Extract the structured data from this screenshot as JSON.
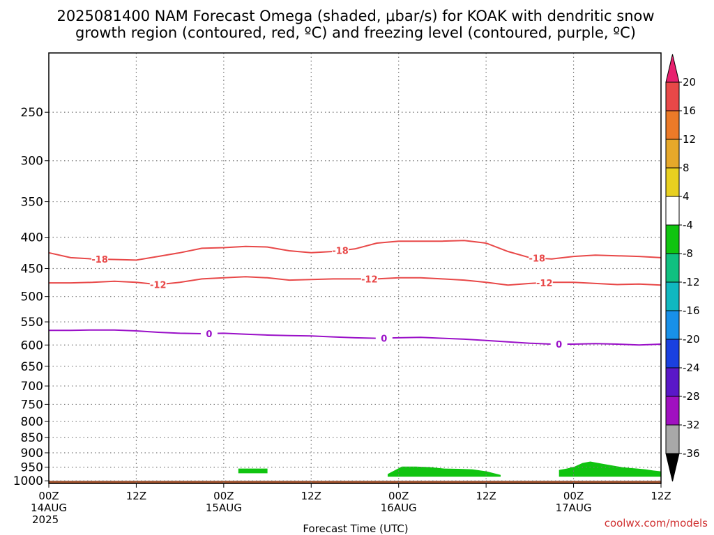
{
  "chart_data": {
    "type": "area",
    "title_line1": "2025081400 NAM Forecast Omega (shaded, μbar/s) for KOAK with dendritic snow",
    "title_line2": "growth region (contoured, red, ºC) and freezing level (contoured, purple, ºC)",
    "xlabel": "Forecast Time (UTC)",
    "credit": "coolwx.com/models",
    "x_range_hours": [
      0,
      84
    ],
    "x_ticks": [
      {
        "hour": 0,
        "l1": "00Z",
        "l2": "14AUG",
        "l3": "2025"
      },
      {
        "hour": 12,
        "l1": "12Z",
        "l2": "",
        "l3": ""
      },
      {
        "hour": 24,
        "l1": "00Z",
        "l2": "15AUG",
        "l3": ""
      },
      {
        "hour": 36,
        "l1": "12Z",
        "l2": "",
        "l3": ""
      },
      {
        "hour": 48,
        "l1": "00Z",
        "l2": "16AUG",
        "l3": ""
      },
      {
        "hour": 60,
        "l1": "12Z",
        "l2": "",
        "l3": ""
      },
      {
        "hour": 72,
        "l1": "00Z",
        "l2": "17AUG",
        "l3": ""
      },
      {
        "hour": 84,
        "l1": "12Z",
        "l2": "",
        "l3": ""
      }
    ],
    "y_axis": "pressure (hPa), log scale, inverted",
    "y_range": [
      1010,
      200
    ],
    "y_ticks": [
      250,
      300,
      350,
      400,
      450,
      500,
      550,
      600,
      650,
      700,
      750,
      800,
      850,
      900,
      950,
      1000
    ],
    "grid": true,
    "colorbar": {
      "labels": [
        "20",
        "16",
        "12",
        "8",
        "4",
        "-4",
        "-8",
        "-12",
        "-16",
        "-20",
        "-24",
        "-28",
        "-32",
        "-36"
      ],
      "colors": [
        "#e8206e",
        "#e84848",
        "#ec7a28",
        "#e6a82a",
        "#e8d020",
        "#ffffff",
        "#10c410",
        "#10c080",
        "#10b8c0",
        "#1890e8",
        "#1a40e0",
        "#5a18c8",
        "#a010c0",
        "#a8a8a8",
        "#000000"
      ]
    },
    "contours": [
      {
        "name": "-18",
        "color": "#e84848",
        "label_x": [
          7,
          40,
          67
        ],
        "points": [
          [
            0,
            424
          ],
          [
            3,
            432
          ],
          [
            6,
            434
          ],
          [
            9,
            435
          ],
          [
            12,
            436
          ],
          [
            15,
            430
          ],
          [
            18,
            424
          ],
          [
            21,
            417
          ],
          [
            24,
            416
          ],
          [
            27,
            414
          ],
          [
            30,
            415
          ],
          [
            33,
            421
          ],
          [
            36,
            424
          ],
          [
            39,
            422
          ],
          [
            42,
            418
          ],
          [
            45,
            409
          ],
          [
            48,
            406
          ],
          [
            51,
            406
          ],
          [
            54,
            406
          ],
          [
            57,
            405
          ],
          [
            60,
            409
          ],
          [
            63,
            422
          ],
          [
            66,
            432
          ],
          [
            69,
            434
          ],
          [
            72,
            430
          ],
          [
            75,
            428
          ],
          [
            78,
            429
          ],
          [
            81,
            430
          ],
          [
            84,
            432
          ]
        ]
      },
      {
        "name": "-12",
        "color": "#e84848",
        "label_x": [
          15,
          44,
          68
        ],
        "points": [
          [
            0,
            475
          ],
          [
            3,
            475
          ],
          [
            6,
            474
          ],
          [
            9,
            472
          ],
          [
            12,
            474
          ],
          [
            15,
            478
          ],
          [
            18,
            474
          ],
          [
            21,
            468
          ],
          [
            24,
            466
          ],
          [
            27,
            464
          ],
          [
            30,
            466
          ],
          [
            33,
            470
          ],
          [
            36,
            469
          ],
          [
            39,
            468
          ],
          [
            42,
            468
          ],
          [
            45,
            468
          ],
          [
            48,
            466
          ],
          [
            51,
            466
          ],
          [
            54,
            468
          ],
          [
            57,
            470
          ],
          [
            60,
            474
          ],
          [
            63,
            479
          ],
          [
            66,
            476
          ],
          [
            69,
            474
          ],
          [
            72,
            474
          ],
          [
            75,
            476
          ],
          [
            78,
            478
          ],
          [
            81,
            477
          ],
          [
            84,
            479
          ]
        ]
      },
      {
        "name": "0",
        "color": "#9a10c8",
        "label_x": [
          22,
          46,
          70
        ],
        "points": [
          [
            0,
            568
          ],
          [
            3,
            568
          ],
          [
            6,
            567
          ],
          [
            9,
            567
          ],
          [
            12,
            569
          ],
          [
            15,
            572
          ],
          [
            18,
            574
          ],
          [
            21,
            575
          ],
          [
            24,
            574
          ],
          [
            27,
            576
          ],
          [
            30,
            578
          ],
          [
            33,
            579
          ],
          [
            36,
            580
          ],
          [
            39,
            582
          ],
          [
            42,
            584
          ],
          [
            45,
            585
          ],
          [
            48,
            584
          ],
          [
            51,
            583
          ],
          [
            54,
            585
          ],
          [
            57,
            587
          ],
          [
            60,
            590
          ],
          [
            63,
            593
          ],
          [
            66,
            596
          ],
          [
            69,
            598
          ],
          [
            72,
            598
          ],
          [
            75,
            597
          ],
          [
            78,
            598
          ],
          [
            81,
            600
          ],
          [
            84,
            598
          ]
        ]
      }
    ],
    "shaded_regions": [
      {
        "value": -4,
        "color": "#10c410",
        "x_range": [
          26,
          30
        ],
        "top": [
          955,
          955
        ],
        "bottom": 972
      },
      {
        "value": -4,
        "color": "#10c410",
        "x_range": [
          46.5,
          62
        ],
        "top": [
          975,
          948,
          948,
          950,
          955,
          956,
          958,
          965,
          978
        ],
        "bottom": 985
      },
      {
        "value": -4,
        "color": "#10c410",
        "x_range": [
          70,
          84
        ],
        "top": [
          960,
          955,
          948,
          935,
          930,
          935,
          940,
          945,
          950,
          953,
          955,
          958,
          962,
          965
        ],
        "bottom": 985
      }
    ],
    "terrain": {
      "color": "#a0522d",
      "top_hpa": 1000
    }
  }
}
